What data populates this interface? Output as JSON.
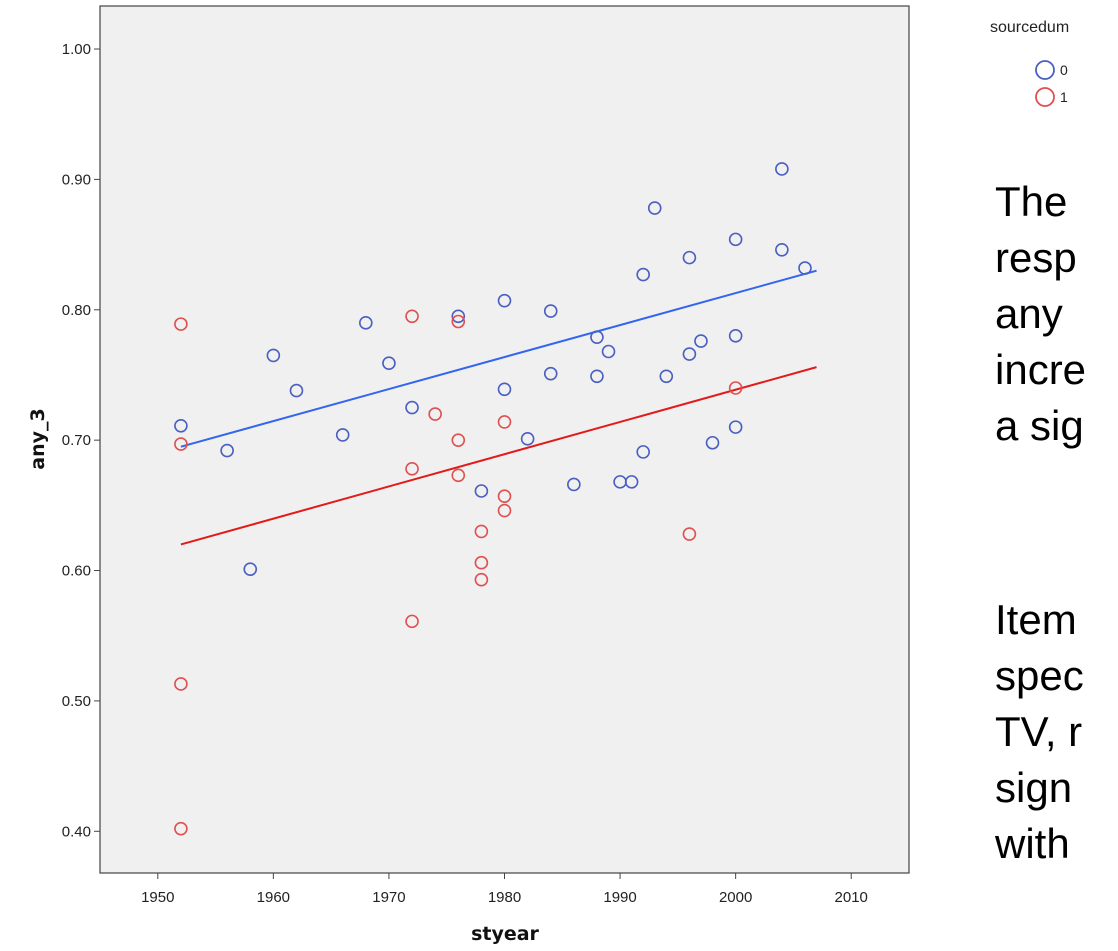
{
  "chart_data": {
    "type": "scatter",
    "xlabel": "styear",
    "ylabel": "any_3",
    "xlim": [
      1945,
      2015
    ],
    "ylim": [
      0.368,
      1.033
    ],
    "x_ticks": [
      "1950",
      "1960",
      "1970",
      "1980",
      "1990",
      "2000",
      "2010"
    ],
    "x_tick_values": [
      1950,
      1960,
      1970,
      1980,
      1990,
      2000,
      2010
    ],
    "y_ticks": [
      "0.40",
      "0.50",
      "0.60",
      "0.70",
      "0.80",
      "0.90",
      "1.00"
    ],
    "y_tick_values": [
      0.4,
      0.5,
      0.6,
      0.7,
      0.8,
      0.9,
      1.0
    ],
    "grid": false,
    "background": "#f0f0f0",
    "legend": {
      "title": "sourcedum",
      "placement": "top-right-outside"
    },
    "series": [
      {
        "name": "0",
        "color": "#4a5fc1",
        "points": [
          [
            1952,
            0.711
          ],
          [
            1956,
            0.692
          ],
          [
            1958,
            0.601
          ],
          [
            1960,
            0.765
          ],
          [
            1962,
            0.738
          ],
          [
            1966,
            0.704
          ],
          [
            1968,
            0.79
          ],
          [
            1970,
            0.759
          ],
          [
            1972,
            0.725
          ],
          [
            1976,
            0.795
          ],
          [
            1978,
            0.661
          ],
          [
            1980,
            0.807
          ],
          [
            1980,
            0.739
          ],
          [
            1982,
            0.701
          ],
          [
            1984,
            0.799
          ],
          [
            1984,
            0.751
          ],
          [
            1986,
            0.666
          ],
          [
            1988,
            0.779
          ],
          [
            1988,
            0.749
          ],
          [
            1989,
            0.768
          ],
          [
            1990,
            0.668
          ],
          [
            1991,
            0.668
          ],
          [
            1992,
            0.827
          ],
          [
            1992,
            0.691
          ],
          [
            1993,
            0.878
          ],
          [
            1994,
            0.749
          ],
          [
            1996,
            0.84
          ],
          [
            1996,
            0.766
          ],
          [
            1997,
            0.776
          ],
          [
            1998,
            0.698
          ],
          [
            2000,
            0.854
          ],
          [
            2000,
            0.78
          ],
          [
            2000,
            0.71
          ],
          [
            2004,
            0.908
          ],
          [
            2004,
            0.846
          ],
          [
            2006,
            0.832
          ]
        ],
        "fit_line": {
          "color": "#3366ee",
          "x": [
            1952,
            2007
          ],
          "y": [
            0.695,
            0.83
          ]
        }
      },
      {
        "name": "1",
        "color": "#e05050",
        "points": [
          [
            1952,
            0.789
          ],
          [
            1952,
            0.697
          ],
          [
            1952,
            0.513
          ],
          [
            1952,
            0.402
          ],
          [
            1972,
            0.795
          ],
          [
            1972,
            0.678
          ],
          [
            1972,
            0.561
          ],
          [
            1974,
            0.72
          ],
          [
            1976,
            0.791
          ],
          [
            1976,
            0.7
          ],
          [
            1976,
            0.673
          ],
          [
            1978,
            0.63
          ],
          [
            1978,
            0.606
          ],
          [
            1978,
            0.593
          ],
          [
            1980,
            0.714
          ],
          [
            1980,
            0.657
          ],
          [
            1980,
            0.646
          ],
          [
            1996,
            0.628
          ],
          [
            2000,
            0.74
          ]
        ],
        "fit_line": {
          "color": "#e31a1a",
          "x": [
            1952,
            2007
          ],
          "y": [
            0.62,
            0.756
          ]
        }
      }
    ]
  },
  "side_text": {
    "paragraph1": [
      "The",
      "resp",
      "any",
      "incre",
      "a sig"
    ],
    "paragraph2": [
      "Item",
      "spec",
      "TV, r",
      "sign",
      "with"
    ]
  }
}
